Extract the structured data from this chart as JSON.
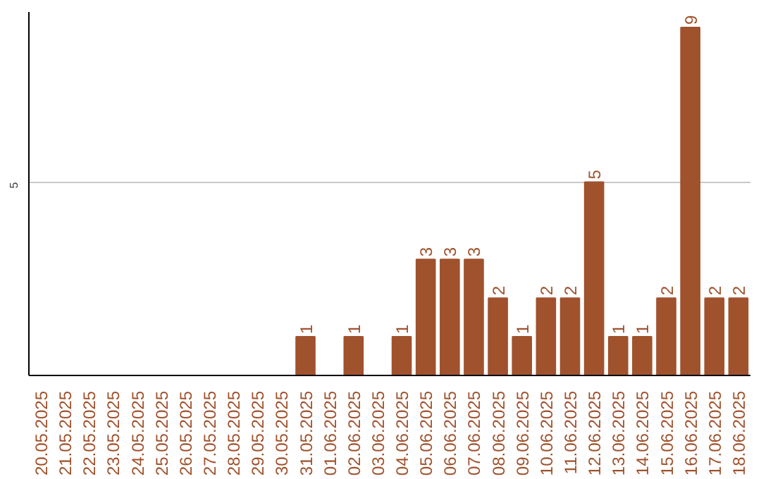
{
  "chart_data": {
    "type": "bar",
    "categories": [
      "20.05.2025",
      "21.05.2025",
      "22.05.2025",
      "23.05.2025",
      "24.05.2025",
      "25.05.2025",
      "26.05.2025",
      "27.05.2025",
      "28.05.2025",
      "29.05.2025",
      "30.05.2025",
      "31.05.2025",
      "01.06.2025",
      "02.06.2025",
      "03.06.2025",
      "04.06.2025",
      "05.06.2025",
      "06.06.2025",
      "07.06.2025",
      "08.06.2025",
      "09.06.2025",
      "10.06.2025",
      "11.06.2025",
      "12.06.2025",
      "13.06.2025",
      "14.06.2025",
      "15.06.2025",
      "16.06.2025",
      "17.06.2025",
      "18.06.2025"
    ],
    "values": [
      0,
      0,
      0,
      0,
      0,
      0,
      0,
      0,
      0,
      0,
      0,
      1,
      0,
      1,
      0,
      1,
      3,
      3,
      3,
      2,
      1,
      2,
      2,
      5,
      1,
      1,
      2,
      9,
      2,
      2
    ],
    "value_labels": [
      null,
      null,
      null,
      null,
      null,
      null,
      null,
      null,
      null,
      null,
      null,
      "1",
      null,
      "1",
      null,
      "1",
      "3",
      "3",
      "3",
      "2",
      "1",
      "2",
      "2",
      "5",
      "1",
      "1",
      "2",
      "9",
      "2",
      "2"
    ],
    "color": "#a0522d",
    "ylim": [
      0,
      9.4
    ],
    "yticks": [
      5
    ],
    "grid": "y"
  }
}
